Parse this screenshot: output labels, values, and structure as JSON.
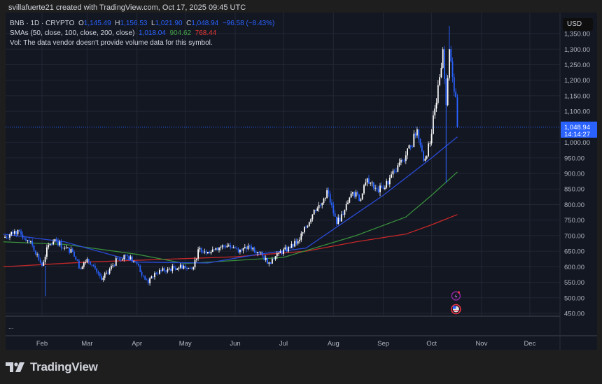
{
  "credit": "svillafuerte21 created with TradingView.com, Oct 17, 2025 09:45 UTC",
  "legend": {
    "symbol": "BNB · 1D · CRYPTO",
    "o_label": "O",
    "o": "1,145.49",
    "h_label": "H",
    "h": "1,156.53",
    "l_label": "L",
    "l": "1,021.90",
    "c_label": "C",
    "c": "1,048.94",
    "change": "−96.58 (−8.43%)",
    "sma_label": "SMAs (50, close, 100, close, 200, close)",
    "sma50": "1,018.04",
    "sma100": "904.62",
    "sma200": "768.44",
    "vol": "Vol: The data vendor doesn't provide volume data for this symbol."
  },
  "currency": "USD",
  "pane_menu": "...",
  "last_price": {
    "price": "1,048.94",
    "countdown": "14:14:27"
  },
  "brand": "TradingView",
  "colors": {
    "background": "#131722",
    "up": "#ffffff",
    "down": "#2962ff",
    "sma50": "#2a4bd7",
    "sma100": "#388e3c",
    "sma200": "#c62828",
    "price_label": "#2962ff"
  },
  "chart_data": {
    "type": "candlestick",
    "ylim": [
      450,
      1375
    ],
    "y_ticks": [
      "1,350.00",
      "1,300.00",
      "1,250.00",
      "1,200.00",
      "1,150.00",
      "1,100.00",
      "1,000.00",
      "950.00",
      "900.00",
      "850.00",
      "800.00",
      "750.00",
      "700.00",
      "650.00",
      "600.00",
      "550.00",
      "500.00",
      "450.00"
    ],
    "y_tick_values": [
      1350,
      1300,
      1250,
      1200,
      1150,
      1100,
      1000,
      950,
      900,
      850,
      800,
      750,
      700,
      650,
      600,
      550,
      500,
      450
    ],
    "x_ticks": [
      {
        "label": "Feb",
        "date": "2025-02-01"
      },
      {
        "label": "Mar",
        "date": "2025-03-01"
      },
      {
        "label": "Apr",
        "date": "2025-04-01"
      },
      {
        "label": "May",
        "date": "2025-05-01"
      },
      {
        "label": "Jun",
        "date": "2025-06-01"
      },
      {
        "label": "Jul",
        "date": "2025-07-01"
      },
      {
        "label": "Aug",
        "date": "2025-08-01"
      },
      {
        "label": "Sep",
        "date": "2025-09-01"
      },
      {
        "label": "Oct",
        "date": "2025-10-01"
      },
      {
        "label": "Nov",
        "date": "2025-11-01"
      },
      {
        "label": "Dec",
        "date": "2025-12-01"
      }
    ],
    "closes": [
      [
        "2025-01-08",
        693
      ],
      [
        "2025-01-15",
        715
      ],
      [
        "2025-01-25",
        682
      ],
      [
        "2025-02-01",
        603
      ],
      [
        "2025-02-05",
        670
      ],
      [
        "2025-02-10",
        682
      ],
      [
        "2025-02-15",
        660
      ],
      [
        "2025-02-20",
        648
      ],
      [
        "2025-02-25",
        592
      ],
      [
        "2025-03-01",
        625
      ],
      [
        "2025-03-05",
        603
      ],
      [
        "2025-03-10",
        558
      ],
      [
        "2025-03-15",
        592
      ],
      [
        "2025-03-20",
        625
      ],
      [
        "2025-03-25",
        637
      ],
      [
        "2025-03-31",
        614
      ],
      [
        "2025-04-05",
        570
      ],
      [
        "2025-04-08",
        547
      ],
      [
        "2025-04-12",
        580
      ],
      [
        "2025-04-20",
        592
      ],
      [
        "2025-04-30",
        603
      ],
      [
        "2025-05-05",
        592
      ],
      [
        "2025-05-10",
        660
      ],
      [
        "2025-05-15",
        648
      ],
      [
        "2025-05-20",
        660
      ],
      [
        "2025-05-28",
        670
      ],
      [
        "2025-06-05",
        652
      ],
      [
        "2025-06-10",
        666
      ],
      [
        "2025-06-15",
        648
      ],
      [
        "2025-06-22",
        614
      ],
      [
        "2025-06-28",
        644
      ],
      [
        "2025-07-05",
        660
      ],
      [
        "2025-07-10",
        682
      ],
      [
        "2025-07-15",
        727
      ],
      [
        "2025-07-20",
        783
      ],
      [
        "2025-07-25",
        805
      ],
      [
        "2025-07-28",
        846
      ],
      [
        "2025-08-03",
        738
      ],
      [
        "2025-08-08",
        783
      ],
      [
        "2025-08-13",
        839
      ],
      [
        "2025-08-18",
        817
      ],
      [
        "2025-08-22",
        884
      ],
      [
        "2025-08-28",
        850
      ],
      [
        "2025-09-01",
        850
      ],
      [
        "2025-09-08",
        907
      ],
      [
        "2025-09-13",
        941
      ],
      [
        "2025-09-18",
        986
      ],
      [
        "2025-09-22",
        1042
      ],
      [
        "2025-09-26",
        941
      ],
      [
        "2025-09-30",
        997
      ],
      [
        "2025-10-03",
        1109
      ],
      [
        "2025-10-06",
        1210
      ],
      [
        "2025-10-08",
        1300
      ],
      [
        "2025-10-10",
        1120
      ],
      [
        "2025-10-12",
        1300
      ],
      [
        "2025-10-14",
        1210
      ],
      [
        "2025-10-16",
        1145
      ],
      [
        "2025-10-17",
        1049
      ]
    ],
    "notable_wicks": [
      [
        "2025-02-03",
        505
      ],
      [
        "2025-10-10",
        870
      ],
      [
        "2025-10-12",
        1375
      ]
    ],
    "sma50": [
      [
        "2025-01-08",
        705
      ],
      [
        "2025-02-15",
        680
      ],
      [
        "2025-04-01",
        615
      ],
      [
        "2025-05-15",
        612
      ],
      [
        "2025-06-15",
        640
      ],
      [
        "2025-07-15",
        660
      ],
      [
        "2025-08-15",
        770
      ],
      [
        "2025-09-01",
        830
      ],
      [
        "2025-10-01",
        950
      ],
      [
        "2025-10-17",
        1018
      ]
    ],
    "sma100": [
      [
        "2025-01-08",
        680
      ],
      [
        "2025-02-15",
        672
      ],
      [
        "2025-04-01",
        640
      ],
      [
        "2025-05-01",
        610
      ],
      [
        "2025-07-01",
        630
      ],
      [
        "2025-08-15",
        700
      ],
      [
        "2025-09-15",
        760
      ],
      [
        "2025-10-01",
        830
      ],
      [
        "2025-10-17",
        905
      ]
    ],
    "sma200": [
      [
        "2025-01-08",
        600
      ],
      [
        "2025-03-01",
        615
      ],
      [
        "2025-06-01",
        632
      ],
      [
        "2025-07-15",
        650
      ],
      [
        "2025-08-15",
        680
      ],
      [
        "2025-09-15",
        705
      ],
      [
        "2025-10-01",
        735
      ],
      [
        "2025-10-17",
        768
      ]
    ]
  }
}
